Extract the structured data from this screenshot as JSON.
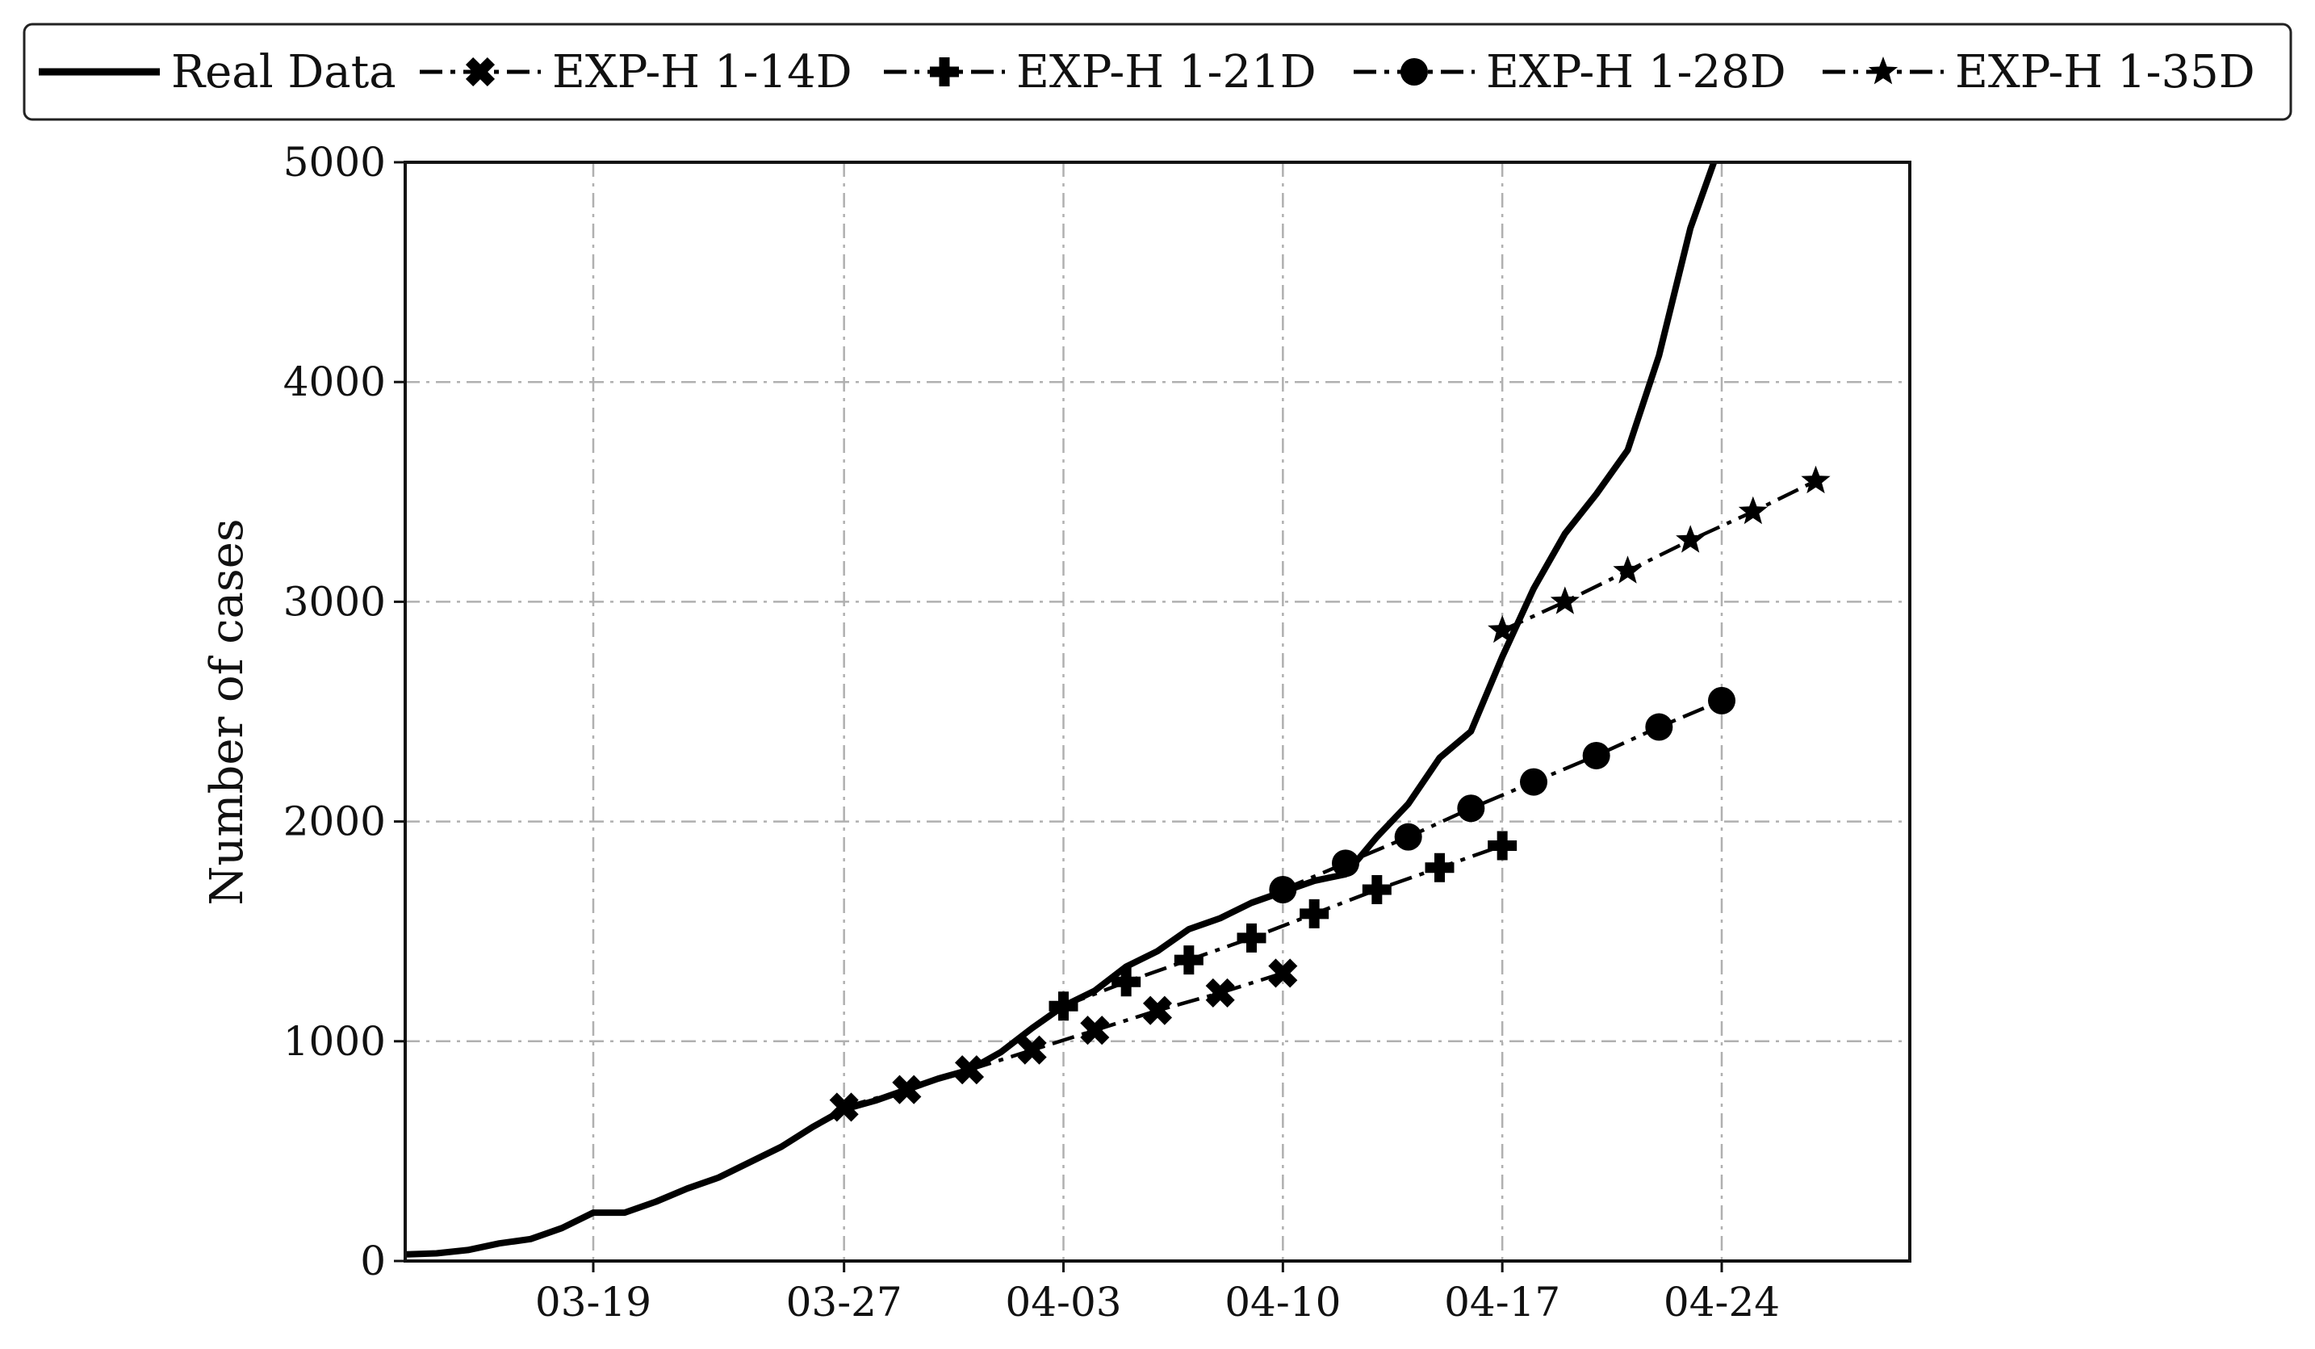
{
  "chart_data": {
    "type": "line",
    "xlabel": "",
    "ylabel": "Number of cases",
    "x_range": [
      "2020-03-13",
      "2020-04-30"
    ],
    "ylim": [
      0,
      5000
    ],
    "x_ticks": [
      {
        "date": "2020-03-19",
        "label": "03-19"
      },
      {
        "date": "2020-03-27",
        "label": "03-27"
      },
      {
        "date": "2020-04-03",
        "label": "04-03"
      },
      {
        "date": "2020-04-10",
        "label": "04-10"
      },
      {
        "date": "2020-04-17",
        "label": "04-17"
      },
      {
        "date": "2020-04-24",
        "label": "04-24"
      }
    ],
    "y_ticks": [
      0,
      1000,
      2000,
      3000,
      4000,
      5000
    ],
    "grid": true,
    "legend_position": "top",
    "series": [
      {
        "name": "Real Data",
        "style": "solid",
        "marker": "none",
        "points": [
          [
            "2020-03-13",
            30
          ],
          [
            "2020-03-14",
            35
          ],
          [
            "2020-03-15",
            50
          ],
          [
            "2020-03-16",
            80
          ],
          [
            "2020-03-17",
            100
          ],
          [
            "2020-03-18",
            150
          ],
          [
            "2020-03-19",
            220
          ],
          [
            "2020-03-20",
            220
          ],
          [
            "2020-03-21",
            270
          ],
          [
            "2020-03-22",
            330
          ],
          [
            "2020-03-23",
            380
          ],
          [
            "2020-03-24",
            450
          ],
          [
            "2020-03-25",
            520
          ],
          [
            "2020-03-26",
            610
          ],
          [
            "2020-03-27",
            690
          ],
          [
            "2020-03-28",
            730
          ],
          [
            "2020-03-29",
            780
          ],
          [
            "2020-03-30",
            830
          ],
          [
            "2020-03-31",
            870
          ],
          [
            "2020-04-01",
            950
          ],
          [
            "2020-04-02",
            1060
          ],
          [
            "2020-04-03",
            1160
          ],
          [
            "2020-04-04",
            1230
          ],
          [
            "2020-04-05",
            1340
          ],
          [
            "2020-04-06",
            1410
          ],
          [
            "2020-04-07",
            1510
          ],
          [
            "2020-04-08",
            1560
          ],
          [
            "2020-04-09",
            1630
          ],
          [
            "2020-04-10",
            1680
          ],
          [
            "2020-04-11",
            1730
          ],
          [
            "2020-04-12",
            1760
          ],
          [
            "2020-04-13",
            1930
          ],
          [
            "2020-04-14",
            2080
          ],
          [
            "2020-04-15",
            2290
          ],
          [
            "2020-04-16",
            2410
          ],
          [
            "2020-04-17",
            2750
          ],
          [
            "2020-04-18",
            3060
          ],
          [
            "2020-04-19",
            3310
          ],
          [
            "2020-04-20",
            3490
          ],
          [
            "2020-04-21",
            3690
          ],
          [
            "2020-04-22",
            4120
          ],
          [
            "2020-04-23",
            4700
          ],
          [
            "2020-04-24",
            5100
          ]
        ]
      },
      {
        "name": "EXP-H 1-14D",
        "style": "dashdot",
        "marker": "x",
        "points": [
          [
            "2020-03-27",
            700
          ],
          [
            "2020-03-29",
            780
          ],
          [
            "2020-03-31",
            870
          ],
          [
            "2020-04-02",
            960
          ],
          [
            "2020-04-04",
            1050
          ],
          [
            "2020-04-06",
            1140
          ],
          [
            "2020-04-08",
            1220
          ],
          [
            "2020-04-10",
            1310
          ]
        ]
      },
      {
        "name": "EXP-H 1-21D",
        "style": "dashdot",
        "marker": "plus",
        "points": [
          [
            "2020-04-03",
            1160
          ],
          [
            "2020-04-05",
            1270
          ],
          [
            "2020-04-07",
            1370
          ],
          [
            "2020-04-09",
            1470
          ],
          [
            "2020-04-11",
            1580
          ],
          [
            "2020-04-13",
            1690
          ],
          [
            "2020-04-15",
            1790
          ],
          [
            "2020-04-17",
            1890
          ]
        ]
      },
      {
        "name": "EXP-H 1-28D",
        "style": "dashdot",
        "marker": "circle",
        "points": [
          [
            "2020-04-10",
            1690
          ],
          [
            "2020-04-12",
            1810
          ],
          [
            "2020-04-14",
            1930
          ],
          [
            "2020-04-16",
            2060
          ],
          [
            "2020-04-18",
            2180
          ],
          [
            "2020-04-20",
            2300
          ],
          [
            "2020-04-22",
            2430
          ],
          [
            "2020-04-24",
            2550
          ]
        ]
      },
      {
        "name": "EXP-H 1-35D",
        "style": "dashdot",
        "marker": "star",
        "points": [
          [
            "2020-04-17",
            2870
          ],
          [
            "2020-04-19",
            3000
          ],
          [
            "2020-04-21",
            3140
          ],
          [
            "2020-04-23",
            3280
          ],
          [
            "2020-04-25",
            3410
          ],
          [
            "2020-04-27",
            3550
          ]
        ]
      }
    ]
  }
}
